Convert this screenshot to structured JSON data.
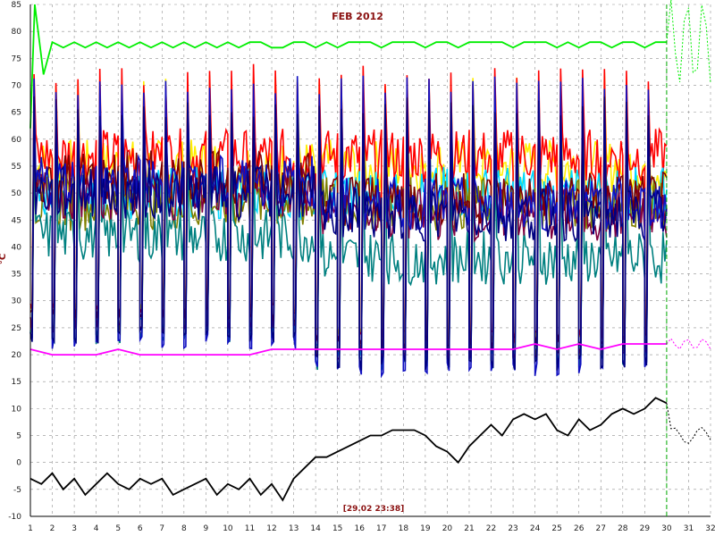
{
  "chart_data": {
    "type": "line",
    "title": "FEB 2012",
    "ylabel": "°C",
    "cursor_label": "[29.02 23:38]",
    "xlim": [
      1,
      32
    ],
    "ylim": [
      -10,
      85
    ],
    "x_ticks": [
      "1",
      "2",
      "3",
      "4",
      "5",
      "6",
      "7",
      "8",
      "9",
      "10",
      "11",
      "12",
      "13",
      "14",
      "15",
      "16",
      "17",
      "18",
      "19",
      "20",
      "21",
      "22",
      "23",
      "24",
      "25",
      "26",
      "27",
      "28",
      "29",
      "30",
      "31",
      "32"
    ],
    "y_ticks": [
      "-10",
      "-5",
      "0",
      "5",
      "10",
      "15",
      "20",
      "25",
      "30",
      "35",
      "40",
      "45",
      "50",
      "55",
      "60",
      "65",
      "70",
      "75",
      "80",
      "85"
    ],
    "grid": true,
    "cursor_x": 30,
    "series": [
      {
        "color": "#00ee00",
        "values": [
          [
            1,
            62
          ],
          [
            1.2,
            85
          ],
          [
            1.6,
            72
          ],
          [
            2,
            78
          ],
          [
            2.5,
            77
          ],
          [
            3,
            78
          ],
          [
            3.5,
            77
          ],
          [
            4,
            78
          ],
          [
            4.5,
            77
          ],
          [
            5,
            78
          ],
          [
            5.5,
            77
          ],
          [
            6,
            78
          ],
          [
            6.5,
            77
          ],
          [
            7,
            78
          ],
          [
            7.5,
            77
          ],
          [
            8,
            78
          ],
          [
            8.5,
            77
          ],
          [
            9,
            78
          ],
          [
            9.5,
            77
          ],
          [
            10,
            78
          ],
          [
            10.5,
            77
          ],
          [
            11,
            78
          ],
          [
            11.5,
            78
          ],
          [
            12,
            77
          ],
          [
            12.5,
            77
          ],
          [
            13,
            78
          ],
          [
            13.5,
            78
          ],
          [
            14,
            77
          ],
          [
            14.5,
            78
          ],
          [
            15,
            77
          ],
          [
            15.5,
            78
          ],
          [
            16,
            78
          ],
          [
            16.5,
            78
          ],
          [
            17,
            77
          ],
          [
            17.5,
            78
          ],
          [
            18,
            78
          ],
          [
            18.5,
            78
          ],
          [
            19,
            77
          ],
          [
            19.5,
            78
          ],
          [
            20,
            78
          ],
          [
            20.5,
            77
          ],
          [
            21,
            78
          ],
          [
            21.5,
            78
          ],
          [
            22,
            78
          ],
          [
            22.5,
            78
          ],
          [
            23,
            77
          ],
          [
            23.5,
            78
          ],
          [
            24,
            78
          ],
          [
            24.5,
            78
          ],
          [
            25,
            77
          ],
          [
            25.5,
            78
          ],
          [
            26,
            77
          ],
          [
            26.5,
            78
          ],
          [
            27,
            78
          ],
          [
            27.5,
            77
          ],
          [
            28,
            78
          ],
          [
            28.5,
            78
          ],
          [
            29,
            77
          ],
          [
            29.5,
            78
          ],
          [
            30,
            78
          ]
        ]
      },
      {
        "color": "#ff00ff",
        "values": [
          [
            1,
            21
          ],
          [
            2,
            20
          ],
          [
            3,
            20
          ],
          [
            4,
            20
          ],
          [
            5,
            21
          ],
          [
            6,
            20
          ],
          [
            7,
            20
          ],
          [
            8,
            20
          ],
          [
            9,
            20
          ],
          [
            10,
            20
          ],
          [
            11,
            20
          ],
          [
            12,
            21
          ],
          [
            13,
            21
          ],
          [
            14,
            21
          ],
          [
            15,
            21
          ],
          [
            16,
            21
          ],
          [
            17,
            21
          ],
          [
            18,
            21
          ],
          [
            19,
            21
          ],
          [
            20,
            21
          ],
          [
            21,
            21
          ],
          [
            22,
            21
          ],
          [
            23,
            21
          ],
          [
            24,
            22
          ],
          [
            25,
            21
          ],
          [
            26,
            22
          ],
          [
            27,
            21
          ],
          [
            28,
            22
          ],
          [
            29,
            22
          ],
          [
            30,
            22
          ]
        ]
      },
      {
        "color": "#000000",
        "values": [
          [
            1,
            -3
          ],
          [
            1.5,
            -4
          ],
          [
            2,
            -2
          ],
          [
            2.5,
            -5
          ],
          [
            3,
            -3
          ],
          [
            3.5,
            -6
          ],
          [
            4,
            -4
          ],
          [
            4.5,
            -2
          ],
          [
            5,
            -4
          ],
          [
            5.5,
            -5
          ],
          [
            6,
            -3
          ],
          [
            6.5,
            -4
          ],
          [
            7,
            -3
          ],
          [
            7.5,
            -6
          ],
          [
            8,
            -5
          ],
          [
            8.5,
            -4
          ],
          [
            9,
            -3
          ],
          [
            9.5,
            -6
          ],
          [
            10,
            -4
          ],
          [
            10.5,
            -5
          ],
          [
            11,
            -3
          ],
          [
            11.5,
            -6
          ],
          [
            12,
            -4
          ],
          [
            12.5,
            -7
          ],
          [
            13,
            -3
          ],
          [
            13.5,
            -1
          ],
          [
            14,
            1
          ],
          [
            14.5,
            1
          ],
          [
            15,
            2
          ],
          [
            15.5,
            3
          ],
          [
            16,
            4
          ],
          [
            16.5,
            5
          ],
          [
            17,
            5
          ],
          [
            17.5,
            6
          ],
          [
            18,
            6
          ],
          [
            18.5,
            6
          ],
          [
            19,
            5
          ],
          [
            19.5,
            3
          ],
          [
            20,
            2
          ],
          [
            20.5,
            0
          ],
          [
            21,
            3
          ],
          [
            21.5,
            5
          ],
          [
            22,
            7
          ],
          [
            22.5,
            5
          ],
          [
            23,
            8
          ],
          [
            23.5,
            9
          ],
          [
            24,
            8
          ],
          [
            24.5,
            9
          ],
          [
            25,
            6
          ],
          [
            25.5,
            5
          ],
          [
            26,
            8
          ],
          [
            26.5,
            6
          ],
          [
            27,
            7
          ],
          [
            27.5,
            9
          ],
          [
            28,
            10
          ],
          [
            28.5,
            9
          ],
          [
            29,
            10
          ],
          [
            29.5,
            12
          ],
          [
            30,
            11
          ]
        ]
      }
    ]
  }
}
